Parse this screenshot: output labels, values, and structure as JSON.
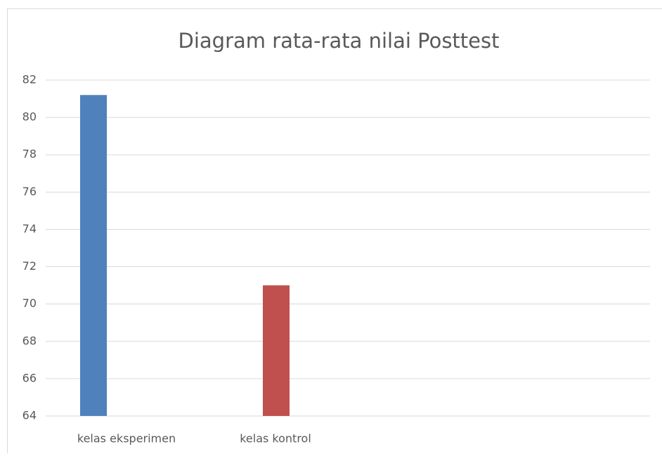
{
  "chart_data": {
    "type": "bar",
    "title": "Diagram rata-rata nilai Posttest",
    "categories": [
      "kelas eksperimen",
      "kelas kontrol"
    ],
    "values": [
      81.2,
      71.0
    ],
    "colors": [
      "#4f81bd",
      "#c0504d"
    ],
    "ylim": [
      64,
      82
    ],
    "yticks": [
      64,
      66,
      68,
      70,
      72,
      74,
      76,
      78,
      80,
      82
    ],
    "grid": true
  }
}
